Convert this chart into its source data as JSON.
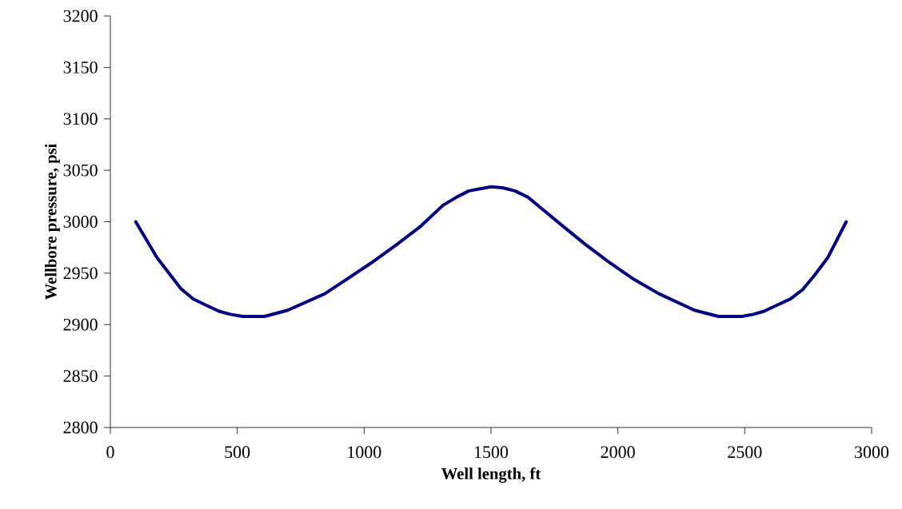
{
  "chart_data": {
    "type": "line",
    "xlabel": "Well length, ft",
    "ylabel": "Wellbore pressure, psi",
    "xlim": [
      0,
      3000
    ],
    "xticks": [
      0,
      500,
      1000,
      1500,
      2000,
      2500,
      3000
    ],
    "ylim": [
      2800,
      3200
    ],
    "yticks": [
      2800,
      2850,
      2900,
      2950,
      3000,
      3050,
      3100,
      3150,
      3200
    ],
    "marker": "none",
    "line_style": "solid",
    "series": [
      {
        "color": "#000080",
        "x": [
          100,
          184,
          278,
          326,
          376,
          428,
          473,
          522,
          608,
          699,
          845,
          931,
          1028,
          1124,
          1220,
          1311,
          1365,
          1413,
          1500,
          1546,
          1594,
          1645,
          1733,
          1782,
          1872,
          1969,
          2063,
          2162,
          2302,
          2396,
          2489,
          2534,
          2576,
          2628,
          2680,
          2728,
          2775,
          2827,
          2900
        ],
        "values": [
          3000,
          2965,
          2935,
          2925,
          2919,
          2913,
          2910,
          2908,
          2908,
          2914,
          2930,
          2944,
          2960,
          2977,
          2995,
          3016,
          3024,
          3030,
          3034,
          3033,
          3030,
          3024,
          3006,
          2996,
          2978,
          2960,
          2944,
          2930,
          2914,
          2908,
          2908,
          2910,
          2913,
          2919,
          2925,
          2934,
          2948,
          2965,
          3000
        ]
      }
    ]
  }
}
